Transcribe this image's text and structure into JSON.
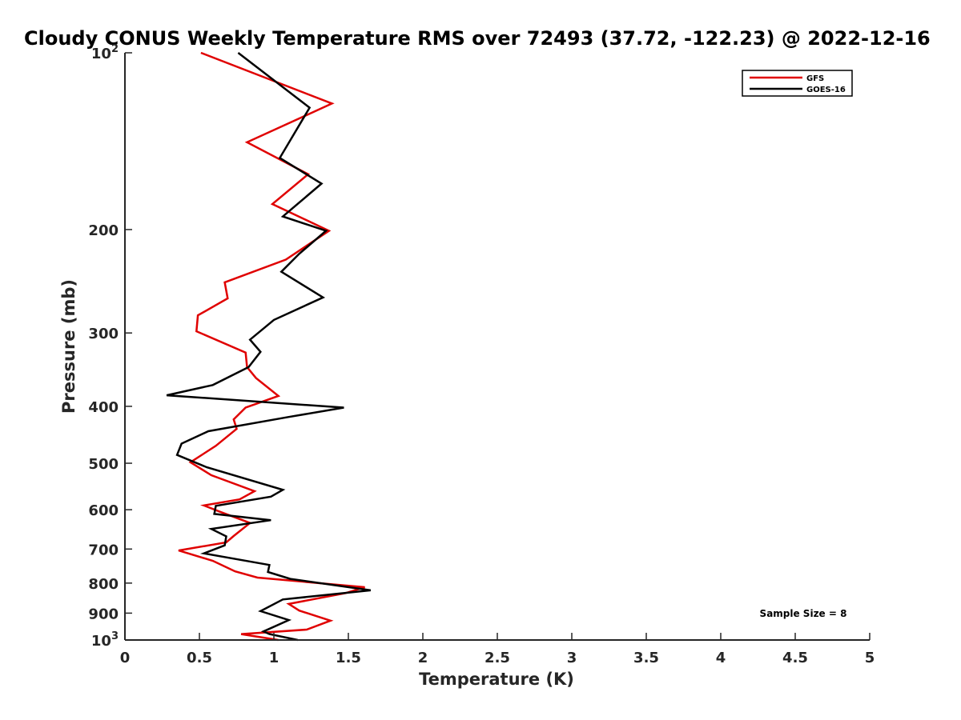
{
  "chart_data": {
    "type": "line",
    "title": "Cloudy CONUS Weekly Temperature RMS over 72493 (37.72, -122.23) @ 2022-12-16",
    "xlabel": "Temperature (K)",
    "ylabel": "Pressure (mb)",
    "xlim": [
      0,
      5
    ],
    "ylim": [
      100,
      1000
    ],
    "y_scale": "log",
    "y_reversed": true,
    "x_ticks": [
      0,
      0.5,
      1,
      1.5,
      2,
      2.5,
      3,
      3.5,
      4,
      4.5,
      5
    ],
    "x_tick_labels": [
      "0",
      "0.5",
      "1",
      "1.5",
      "2",
      "2.5",
      "3",
      "3.5",
      "4",
      "4.5",
      "5"
    ],
    "y_ticks": [
      100,
      200,
      300,
      400,
      500,
      600,
      700,
      800,
      900,
      1000
    ],
    "y_tick_labels": [
      {
        "base": "10",
        "exp": "2"
      },
      {
        "base": "200",
        "exp": ""
      },
      {
        "base": "300",
        "exp": ""
      },
      {
        "base": "400",
        "exp": ""
      },
      {
        "base": "500",
        "exp": ""
      },
      {
        "base": "600",
        "exp": ""
      },
      {
        "base": "700",
        "exp": ""
      },
      {
        "base": "800",
        "exp": ""
      },
      {
        "base": "900",
        "exp": ""
      },
      {
        "base": "10",
        "exp": "3"
      }
    ],
    "grid": false,
    "legend_position": "top-right",
    "annotation": "Sample Size = 8",
    "series": [
      {
        "name": "GFS",
        "color": "#e00000",
        "points": [
          [
            0.51,
            100
          ],
          [
            1.39,
            122
          ],
          [
            0.82,
            142
          ],
          [
            1.23,
            161
          ],
          [
            0.99,
            181
          ],
          [
            1.37,
            201
          ],
          [
            1.08,
            225
          ],
          [
            0.67,
            246
          ],
          [
            0.69,
            262
          ],
          [
            0.49,
            280
          ],
          [
            0.48,
            298
          ],
          [
            0.81,
            324
          ],
          [
            0.82,
            343
          ],
          [
            0.88,
            358
          ],
          [
            1.03,
            384
          ],
          [
            0.81,
            402
          ],
          [
            0.73,
            421
          ],
          [
            0.75,
            437
          ],
          [
            0.61,
            467
          ],
          [
            0.44,
            498
          ],
          [
            0.58,
            524
          ],
          [
            0.87,
            558
          ],
          [
            0.77,
            576
          ],
          [
            0.53,
            590
          ],
          [
            0.64,
            605
          ],
          [
            0.84,
            632
          ],
          [
            0.73,
            665
          ],
          [
            0.68,
            682
          ],
          [
            0.36,
            704
          ],
          [
            0.59,
            733
          ],
          [
            0.74,
            764
          ],
          [
            0.89,
            783
          ],
          [
            1.61,
            813
          ],
          [
            1.48,
            832
          ],
          [
            1.1,
            868
          ],
          [
            1.17,
            891
          ],
          [
            1.38,
            927
          ],
          [
            1.22,
            960
          ],
          [
            0.78,
            977
          ],
          [
            1.03,
            1000
          ]
        ]
      },
      {
        "name": "GOES-16",
        "color": "#000000",
        "points": [
          [
            0.76,
            100
          ],
          [
            1.24,
            124
          ],
          [
            1.04,
            151
          ],
          [
            1.32,
            167
          ],
          [
            1.06,
            190
          ],
          [
            1.35,
            201
          ],
          [
            1.17,
            220
          ],
          [
            1.05,
            236
          ],
          [
            1.33,
            261
          ],
          [
            1.0,
            285
          ],
          [
            0.84,
            308
          ],
          [
            0.91,
            323
          ],
          [
            0.83,
            343
          ],
          [
            0.59,
            368
          ],
          [
            0.28,
            383
          ],
          [
            1.47,
            402
          ],
          [
            1.1,
            417
          ],
          [
            0.56,
            441
          ],
          [
            0.38,
            463
          ],
          [
            0.35,
            484
          ],
          [
            0.55,
            508
          ],
          [
            1.06,
            555
          ],
          [
            0.98,
            570
          ],
          [
            0.61,
            591
          ],
          [
            0.6,
            610
          ],
          [
            0.98,
            625
          ],
          [
            0.58,
            647
          ],
          [
            0.68,
            666
          ],
          [
            0.67,
            690
          ],
          [
            0.53,
            712
          ],
          [
            0.97,
            745
          ],
          [
            0.96,
            766
          ],
          [
            1.11,
            787
          ],
          [
            1.65,
            823
          ],
          [
            1.06,
            853
          ],
          [
            0.91,
            893
          ],
          [
            1.1,
            925
          ],
          [
            0.93,
            967
          ],
          [
            0.97,
            977
          ],
          [
            1.16,
            1000
          ]
        ]
      }
    ]
  }
}
